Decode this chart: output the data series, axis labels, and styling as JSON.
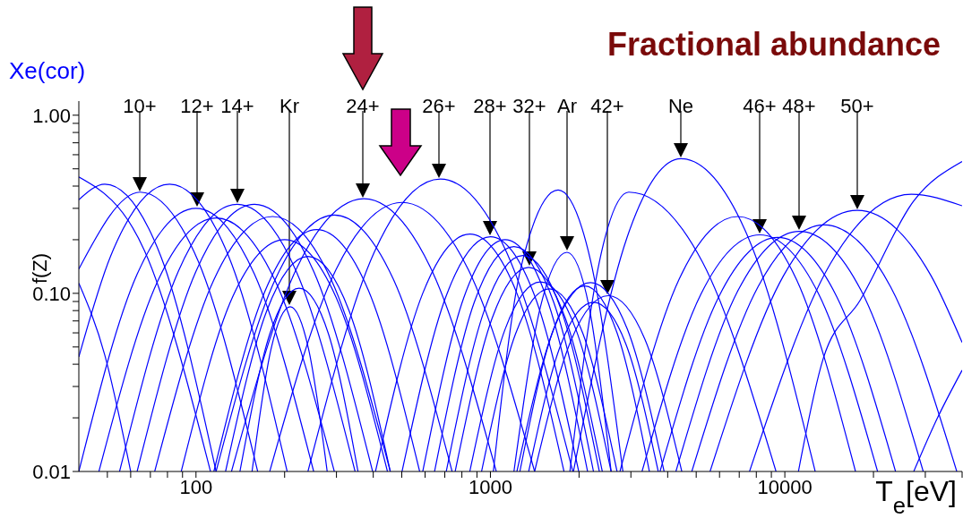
{
  "chart_data": {
    "type": "line",
    "title": "Fractional abundance",
    "xlabel": "T$_{e}$[eV]",
    "ylabel": "f(Z)",
    "log": "xy",
    "marker": "none",
    "line_style": "solid",
    "color": "#0000ff",
    "xlim": [
      40,
      40000
    ],
    "ylim": [
      0.01,
      1.2
    ],
    "xticks": [
      {
        "value": 50,
        "label": null
      },
      {
        "value": 60,
        "label": null
      },
      {
        "value": 70,
        "label": null
      },
      {
        "value": 80,
        "label": null
      },
      {
        "value": 90,
        "label": null
      },
      100,
      {
        "value": 200,
        "label": null
      },
      {
        "value": 300,
        "label": null
      },
      {
        "value": 400,
        "label": null
      },
      {
        "value": 500,
        "label": null
      },
      {
        "value": 600,
        "label": null
      },
      {
        "value": 700,
        "label": null
      },
      {
        "value": 800,
        "label": null
      },
      {
        "value": 900,
        "label": null
      },
      1000,
      {
        "value": 2000,
        "label": null
      },
      {
        "value": 3000,
        "label": null
      },
      {
        "value": 4000,
        "label": null
      },
      {
        "value": 5000,
        "label": null
      },
      {
        "value": 6000,
        "label": null
      },
      {
        "value": 7000,
        "label": null
      },
      {
        "value": 8000,
        "label": null
      },
      {
        "value": 9000,
        "label": null
      },
      10000,
      {
        "value": 20000,
        "label": null
      },
      {
        "value": 30000,
        "label": null
      },
      {
        "value": 40000,
        "label": null
      }
    ],
    "yticks": [
      {
        "value": 0.01,
        "label": "0.01"
      },
      {
        "value": 0.02,
        "label": null
      },
      {
        "value": 0.03,
        "label": null
      },
      {
        "value": 0.04,
        "label": null
      },
      {
        "value": 0.05,
        "label": null
      },
      {
        "value": 0.06,
        "label": null
      },
      {
        "value": 0.07,
        "label": null
      },
      {
        "value": 0.08,
        "label": null
      },
      {
        "value": 0.09,
        "label": null
      },
      {
        "value": 0.1,
        "label": "0.10"
      },
      {
        "value": 0.2,
        "label": null
      },
      {
        "value": 0.3,
        "label": null
      },
      {
        "value": 0.4,
        "label": null
      },
      {
        "value": 0.5,
        "label": null
      },
      {
        "value": 0.6,
        "label": null
      },
      {
        "value": 0.7,
        "label": null
      },
      {
        "value": 0.8,
        "label": null
      },
      {
        "value": 0.9,
        "label": null
      },
      {
        "value": 1,
        "label": "1.00"
      }
    ],
    "annotations": [
      "Xe(cor)",
      "10+",
      "12+",
      "14+",
      "Kr",
      "24+",
      "26+",
      "28+",
      "32+",
      "Ar",
      "42+",
      "Ne",
      "46+",
      "48+",
      "50+"
    ],
    "series": [
      {
        "x": [
          40,
          49,
          60
        ],
        "values": [
          0.114,
          0.045,
          0.01
        ]
      },
      {
        "x": [
          40,
          66.8,
          112
        ],
        "values": [
          0.45,
          0.174,
          0.01
        ]
      },
      {
        "x": [
          40,
          49,
          75.9,
          117
        ],
        "values": [
          0.335,
          0.41,
          0.162,
          0.01
        ]
      },
      {
        "x": [
          40,
          64.6,
          102,
          162
        ],
        "values": [
          0.137,
          0.37,
          0.15,
          0.01
        ]
      },
      {
        "x": [
          40,
          51.3,
          81.3,
          129,
          204
        ],
        "values": [
          0.044,
          0.162,
          0.41,
          0.162,
          0.01
        ]
      },
      {
        "x": [
          40,
          63.1,
          100,
          158,
          251
        ],
        "values": [
          0.01,
          0.128,
          0.3,
          0.128,
          0.01
        ]
      },
      {
        "x": [
          46.8,
          74.1,
          117,
          186,
          295
        ],
        "values": [
          0.01,
          0.117,
          0.265,
          0.117,
          0.01
        ]
      },
      {
        "x": [
          55,
          87.1,
          138,
          219,
          347
        ],
        "values": [
          0.01,
          0.133,
          0.316,
          0.133,
          0.01
        ]
      },
      {
        "x": [
          63.1,
          100,
          158,
          251,
          398
        ],
        "values": [
          0.01,
          0.133,
          0.316,
          0.133,
          0.01
        ]
      },
      {
        "x": [
          72.4,
          115,
          182,
          288,
          457
        ],
        "values": [
          0.01,
          0.119,
          0.27,
          0.119,
          0.01
        ]
      },
      {
        "x": [
          89.1,
          133,
          200,
          299,
          447
        ],
        "values": [
          0.01,
          0.095,
          0.2,
          0.095,
          0.01
        ]
      },
      {
        "x": [
          155,
          180,
          209,
          241,
          279
        ],
        "values": [
          0.01,
          0.049,
          0.084,
          0.049,
          0.01
        ]
      },
      {
        "x": [
          141,
          178,
          224,
          282,
          355
        ],
        "values": [
          0.01,
          0.059,
          0.107,
          0.059,
          0.01
        ]
      },
      {
        "x": [
          126,
          174,
          240,
          331,
          457
        ],
        "values": [
          0.01,
          0.08,
          0.161,
          0.08,
          0.01
        ]
      },
      {
        "x": [
          115,
          172,
          257,
          385,
          575
        ],
        "values": [
          0.01,
          0.104,
          0.228,
          0.104,
          0.01
        ]
      },
      {
        "x": [
          117,
          186,
          295,
          468,
          741
        ],
        "values": [
          0.01,
          0.12,
          0.275,
          0.12,
          0.01
        ]
      },
      {
        "x": [
          132,
          221,
          372,
          624,
          1047
        ],
        "values": [
          0.01,
          0.141,
          0.34,
          0.141,
          0.01
        ]
      },
      {
        "x": [
          178,
          299,
          501,
          841,
          1413
        ],
        "values": [
          0.01,
          0.136,
          0.324,
          0.136,
          0.01
        ]
      },
      {
        "x": [
          240,
          403,
          676,
          1135,
          1905
        ],
        "values": [
          0.01,
          0.17,
          0.438,
          0.17,
          0.01
        ]
      },
      {
        "x": [
          407,
          589,
          851,
          1230,
          1778
        ],
        "values": [
          0.01,
          0.1,
          0.215,
          0.1,
          0.01
        ]
      },
      {
        "x": [
          501,
          708,
          1000,
          1413,
          1995
        ],
        "values": [
          0.01,
          0.097,
          0.208,
          0.097,
          0.01
        ]
      },
      {
        "x": [
          589,
          813,
          1122,
          1549,
          2138
        ],
        "values": [
          0.01,
          0.095,
          0.2,
          0.095,
          0.01
        ]
      },
      {
        "x": [
          646,
          881,
          1202,
          1641,
          2239
        ],
        "values": [
          0.01,
          0.089,
          0.183,
          0.089,
          0.01
        ]
      },
      {
        "x": [
          708,
          955,
          1288,
          1738,
          2344
        ],
        "values": [
          0.01,
          0.081,
          0.163,
          0.081,
          0.01
        ]
      },
      {
        "x": [
          759,
          1012,
          1349,
          1799,
          2399
        ],
        "values": [
          0.01,
          0.072,
          0.14,
          0.072,
          0.01
        ]
      },
      {
        "x": [
          851,
          1122,
          1479,
          1950,
          2570
        ],
        "values": [
          0.01,
          0.063,
          0.116,
          0.063,
          0.01
        ]
      },
      {
        "x": [
          933,
          1216,
          1585,
          2065,
          2692
        ],
        "values": [
          0.01,
          0.059,
          0.106,
          0.059,
          0.01
        ]
      },
      {
        "x": [
          1023,
          1270,
          1698,
          2188,
          2818
        ],
        "values": [
          0.01,
          0.14,
          0.38,
          0.153,
          0.01
        ]
      },
      {
        "x": [
          1202,
          1479,
          1820,
          2163,
          2570
        ],
        "values": [
          0.01,
          0.084,
          0.17,
          0.084,
          0.01
        ]
      },
      {
        "x": [
          1259,
          1622,
          2089,
          2692,
          3467
        ],
        "values": [
          0.01,
          0.06,
          0.11,
          0.06,
          0.01
        ]
      },
      {
        "x": [
          1230,
          1641,
          2188,
          2917,
          3890
        ],
        "values": [
          0.01,
          0.063,
          0.115,
          0.063,
          0.01
        ]
      },
      {
        "x": [
          1349,
          1738,
          2239,
          2884,
          3715
        ],
        "values": [
          0.01,
          0.052,
          0.089,
          0.052,
          0.01
        ]
      },
      {
        "x": [
          1413,
          1884,
          2512,
          3350,
          4467
        ],
        "values": [
          0.01,
          0.055,
          0.097,
          0.055,
          0.01
        ]
      },
      {
        "x": [
          1862,
          2344,
          2951,
          5248,
          9333
        ],
        "values": [
          0.01,
          0.15,
          0.37,
          0.15,
          0.01
        ]
      },
      {
        "x": [
          1914,
          2914,
          4436,
          7499,
          12680
        ],
        "values": [
          0.01,
          0.207,
          0.57,
          0.207,
          0.01
        ]
      },
      {
        "x": [
          2754,
          4365,
          6918,
          10965,
          17378
        ],
        "values": [
          0.01,
          0.119,
          0.27,
          0.119,
          0.01
        ]
      },
      {
        "x": [
          3273,
          5188,
          8222,
          13032,
          20654
        ],
        "values": [
          0.01,
          0.099,
          0.213,
          0.099,
          0.01
        ]
      },
      {
        "x": [
          3767,
          5970,
          9462,
          14997,
          23768
        ],
        "values": [
          0.01,
          0.096,
          0.206,
          0.096,
          0.01
        ]
      },
      {
        "x": [
          4266,
          6918,
          11220,
          18197,
          29512
        ],
        "values": [
          0.01,
          0.103,
          0.223,
          0.103,
          0.01
        ]
      },
      {
        "x": [
          4831,
          8110,
          13614,
          22856,
          38371
        ],
        "values": [
          0.01,
          0.109,
          0.242,
          0.109,
          0.01
        ]
      },
      {
        "x": [
          5572,
          9908,
          17620,
          31333,
          40000
        ],
        "values": [
          0.01,
          0.126,
          0.292,
          0.126,
          0.053
        ]
      },
      {
        "x": [
          7586,
          14289,
          26915,
          40000
        ],
        "values": [
          0.01,
          0.147,
          0.36,
          0.31
        ]
      },
      {
        "x": [
          11120,
          13500,
          17990,
          27400,
          40000
        ],
        "values": [
          0.01,
          0.043,
          0.091,
          0.33,
          0.55
        ]
      },
      {
        "x": [
          27400,
          33000,
          40000
        ],
        "values": [
          0.01,
          0.02,
          0.037
        ]
      }
    ]
  }
}
